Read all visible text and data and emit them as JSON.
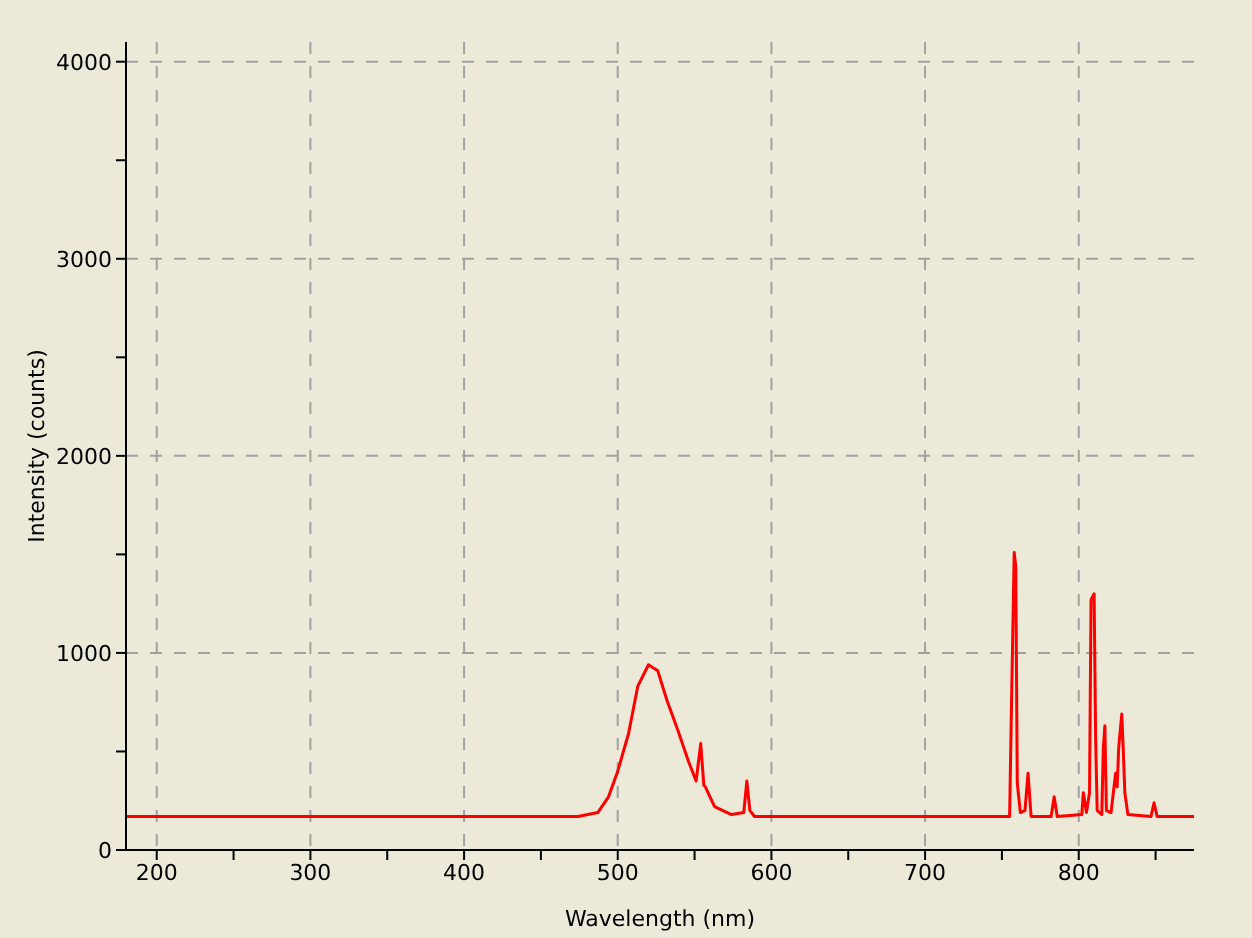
{
  "chart_data": {
    "type": "line",
    "xlabel": "Wavelength (nm)",
    "ylabel": "Intensity (counts)",
    "xlim": [
      180,
      875
    ],
    "xticks": [
      200,
      {
        "value": 250,
        "label": null
      },
      300,
      {
        "value": 350,
        "label": null
      },
      400,
      {
        "value": 450,
        "label": null
      },
      500,
      {
        "value": 550,
        "label": null
      },
      600,
      {
        "value": 650,
        "label": null
      },
      700,
      {
        "value": 750,
        "label": null
      },
      800,
      {
        "value": 850,
        "label": null
      }
    ],
    "ylim": [
      0,
      4100
    ],
    "yticks": [
      0,
      {
        "value": 500,
        "label": null
      },
      1000,
      {
        "value": 1500,
        "label": null
      },
      2000,
      {
        "value": 2500,
        "label": null
      },
      3000,
      {
        "value": 3500,
        "label": null
      },
      4000
    ],
    "grid": true,
    "marker": "none",
    "line_style": "solid",
    "x": [
      180,
      250,
      350,
      450,
      474,
      487,
      494,
      500,
      507,
      513,
      520,
      526,
      532,
      539,
      546,
      551,
      554,
      556,
      557,
      563,
      574,
      582,
      584,
      586,
      589,
      650,
      720,
      755,
      756,
      758,
      759,
      760,
      762,
      765,
      767,
      769,
      782,
      784,
      786,
      802,
      803,
      805,
      807,
      808,
      810,
      811,
      812,
      815,
      816,
      817,
      818,
      821,
      824,
      825,
      826,
      828,
      829,
      830,
      832,
      847,
      849,
      851,
      875
    ],
    "series": [
      {
        "color": "#ff0000",
        "values": [
          170,
          170,
          170,
          170,
          170,
          190,
          270,
          400,
          590,
          830,
          940,
          910,
          760,
          610,
          450,
          350,
          540,
          330,
          320,
          220,
          180,
          190,
          350,
          200,
          170,
          170,
          170,
          170,
          630,
          1510,
          1440,
          340,
          190,
          200,
          390,
          170,
          170,
          270,
          170,
          180,
          290,
          190,
          290,
          1270,
          1300,
          560,
          200,
          180,
          520,
          630,
          200,
          190,
          390,
          320,
          520,
          690,
          500,
          290,
          180,
          170,
          240,
          170,
          170
        ]
      }
    ]
  }
}
